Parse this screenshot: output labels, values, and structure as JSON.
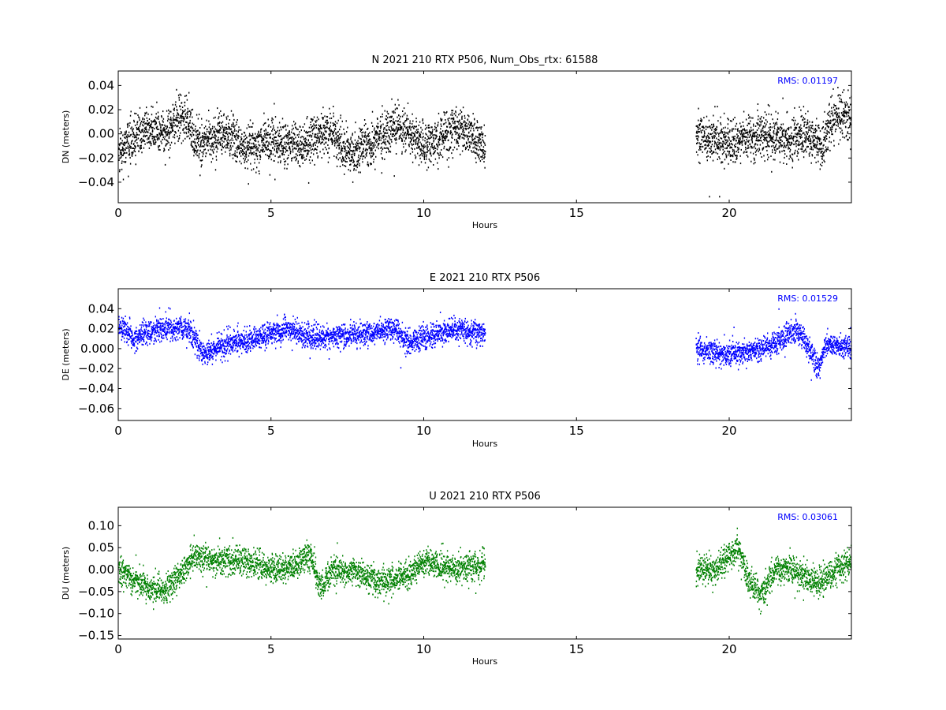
{
  "chart_data": [
    {
      "type": "scatter",
      "title": "N 2021 210 RTX  P506, Num_Obs_rtx: 61588",
      "xlabel": "Hours",
      "ylabel": "DN (meters)",
      "xlim": [
        0,
        24
      ],
      "ylim": [
        -0.057,
        0.052
      ],
      "xticks": [
        0,
        5,
        10,
        15,
        20
      ],
      "yticks": [
        -0.04,
        -0.02,
        0.0,
        0.02,
        0.04
      ],
      "ytick_labels": [
        "−0.04",
        "−0.02",
        "0.00",
        "0.02",
        "0.04"
      ],
      "color": "#000000",
      "annotation": "RMS:  0.01197",
      "annotation_color": "#0000ff",
      "segments": [
        [
          0,
          12
        ],
        [
          18.9,
          24
        ]
      ],
      "noise_sd": 0.009,
      "clip": [
        -0.052,
        0.046
      ],
      "trend": [
        [
          0,
          -0.015
        ],
        [
          0.3,
          -0.01
        ],
        [
          0.6,
          0.0
        ],
        [
          1.0,
          0.005
        ],
        [
          1.5,
          0.0
        ],
        [
          2.0,
          0.015
        ],
        [
          2.3,
          0.012
        ],
        [
          2.5,
          -0.008
        ],
        [
          3.0,
          -0.005
        ],
        [
          3.5,
          0.0
        ],
        [
          4.0,
          -0.012
        ],
        [
          5.0,
          -0.008
        ],
        [
          5.5,
          -0.005
        ],
        [
          6.0,
          -0.01
        ],
        [
          6.5,
          0.0
        ],
        [
          7.0,
          0.0
        ],
        [
          7.5,
          -0.015
        ],
        [
          8.0,
          -0.012
        ],
        [
          8.5,
          -0.005
        ],
        [
          9.0,
          0.005
        ],
        [
          9.5,
          0.002
        ],
        [
          10.0,
          -0.01
        ],
        [
          10.5,
          -0.005
        ],
        [
          11.0,
          0.005
        ],
        [
          11.5,
          0.0
        ],
        [
          12.0,
          -0.012
        ],
        [
          18.9,
          0.0
        ],
        [
          19.5,
          -0.005
        ],
        [
          20.0,
          -0.01
        ],
        [
          20.5,
          -0.005
        ],
        [
          21.0,
          0.0
        ],
        [
          22.0,
          -0.005
        ],
        [
          22.5,
          0.0
        ],
        [
          23.0,
          -0.01
        ],
        [
          23.3,
          0.01
        ],
        [
          23.6,
          0.015
        ],
        [
          24.0,
          0.01
        ]
      ]
    },
    {
      "type": "scatter",
      "title": "E 2021 210 RTX  P506",
      "xlabel": "Hours",
      "ylabel": "DE (meters)",
      "xlim": [
        0,
        24
      ],
      "ylim": [
        -0.072,
        0.06
      ],
      "xticks": [
        0,
        5,
        10,
        15,
        20
      ],
      "yticks": [
        -0.06,
        -0.04,
        -0.02,
        0.0,
        0.02,
        0.04
      ],
      "ytick_labels": [
        "−0.06",
        "−0.04",
        "−0.02",
        "0.000",
        "0.02",
        "0.04"
      ],
      "color": "#0000ff",
      "annotation": "RMS:  0.01529",
      "annotation_color": "#0000ff",
      "segments": [
        [
          0,
          12
        ],
        [
          18.9,
          24
        ]
      ],
      "noise_sd": 0.006,
      "clip": [
        -0.072,
        0.058
      ],
      "trend": [
        [
          0,
          0.02
        ],
        [
          0.3,
          0.018
        ],
        [
          0.5,
          0.005
        ],
        [
          0.7,
          0.015
        ],
        [
          1.5,
          0.02
        ],
        [
          2.3,
          0.02
        ],
        [
          2.8,
          -0.005
        ],
        [
          3.5,
          0.005
        ],
        [
          4.5,
          0.01
        ],
        [
          5.5,
          0.02
        ],
        [
          6.5,
          0.01
        ],
        [
          7.0,
          0.012
        ],
        [
          8.0,
          0.015
        ],
        [
          9.0,
          0.02
        ],
        [
          9.5,
          0.005
        ],
        [
          10.0,
          0.012
        ],
        [
          11.0,
          0.02
        ],
        [
          12.0,
          0.015
        ],
        [
          18.9,
          0.0
        ],
        [
          19.5,
          -0.005
        ],
        [
          20.2,
          -0.005
        ],
        [
          21.0,
          0.0
        ],
        [
          21.5,
          0.005
        ],
        [
          22.2,
          0.02
        ],
        [
          22.6,
          0.0
        ],
        [
          22.9,
          -0.02
        ],
        [
          23.2,
          0.005
        ],
        [
          24.0,
          0.0
        ]
      ]
    },
    {
      "type": "scatter",
      "title": "U 2021 210 RTX  P506",
      "xlabel": "Hours",
      "ylabel": "DU (meters)",
      "xlim": [
        0,
        24
      ],
      "ylim": [
        -0.158,
        0.142
      ],
      "xticks": [
        0,
        5,
        10,
        15,
        20
      ],
      "yticks": [
        -0.15,
        -0.1,
        -0.05,
        0.0,
        0.05,
        0.1
      ],
      "ytick_labels": [
        "−0.15",
        "−0.10",
        "−0.05",
        "0.00",
        "0.05",
        "0.10"
      ],
      "color": "#008000",
      "annotation": "RMS:  0.03061",
      "annotation_color": "#0000ff",
      "segments": [
        [
          0,
          12
        ],
        [
          18.9,
          24
        ]
      ],
      "noise_sd": 0.016,
      "clip": [
        -0.158,
        0.142
      ],
      "trend": [
        [
          0,
          0.0
        ],
        [
          0.4,
          -0.02
        ],
        [
          1.0,
          -0.04
        ],
        [
          1.5,
          -0.05
        ],
        [
          2.0,
          -0.01
        ],
        [
          2.5,
          0.03
        ],
        [
          3.0,
          0.02
        ],
        [
          3.5,
          0.02
        ],
        [
          4.0,
          0.02
        ],
        [
          5.0,
          0.0
        ],
        [
          5.5,
          0.0
        ],
        [
          6.0,
          0.02
        ],
        [
          6.3,
          0.03
        ],
        [
          6.6,
          -0.04
        ],
        [
          7.0,
          0.0
        ],
        [
          8.0,
          -0.01
        ],
        [
          8.5,
          -0.03
        ],
        [
          9.5,
          -0.01
        ],
        [
          10.0,
          0.02
        ],
        [
          11.0,
          0.0
        ],
        [
          12.0,
          0.01
        ],
        [
          18.9,
          0.0
        ],
        [
          19.5,
          0.0
        ],
        [
          20.3,
          0.05
        ],
        [
          20.6,
          -0.02
        ],
        [
          21.0,
          -0.06
        ],
        [
          21.5,
          0.0
        ],
        [
          22.0,
          0.0
        ],
        [
          22.5,
          -0.02
        ],
        [
          23.0,
          -0.03
        ],
        [
          23.5,
          0.0
        ],
        [
          24.0,
          0.02
        ]
      ]
    }
  ]
}
